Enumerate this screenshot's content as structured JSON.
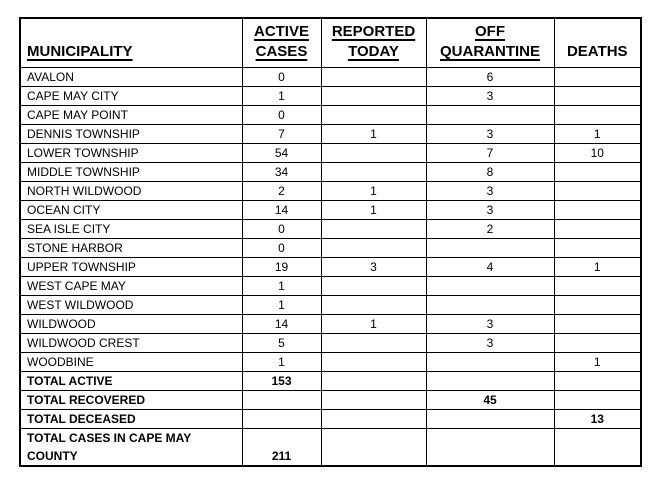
{
  "page": {
    "background_color": "#ffffff",
    "text_color": "#000000",
    "border_color": "#000000"
  },
  "table": {
    "columns": [
      {
        "id": "municipality",
        "label": "MUNICIPALITY",
        "underline": true,
        "align": "left"
      },
      {
        "id": "active_cases",
        "label": "ACTIVE\nCASES",
        "underline": true,
        "align": "center"
      },
      {
        "id": "reported_today",
        "label": "REPORTED\nTODAY",
        "underline": true,
        "align": "center"
      },
      {
        "id": "off_quarantine",
        "label": "OFF\nQUARANTINE",
        "underline": true,
        "align": "center"
      },
      {
        "id": "deaths",
        "label": "DEATHS",
        "underline": false,
        "align": "center"
      }
    ],
    "rows": [
      {
        "municipality": "AVALON",
        "active_cases": "0",
        "reported_today": "",
        "off_quarantine": "6",
        "deaths": ""
      },
      {
        "municipality": "CAPE MAY CITY",
        "active_cases": "1",
        "reported_today": "",
        "off_quarantine": "3",
        "deaths": ""
      },
      {
        "municipality": "CAPE MAY POINT",
        "active_cases": "0",
        "reported_today": "",
        "off_quarantine": "",
        "deaths": ""
      },
      {
        "municipality": "DENNIS TOWNSHIP",
        "active_cases": "7",
        "reported_today": "1",
        "off_quarantine": "3",
        "deaths": "1"
      },
      {
        "municipality": "LOWER TOWNSHIP",
        "active_cases": "54",
        "reported_today": "",
        "off_quarantine": "7",
        "deaths": "10"
      },
      {
        "municipality": "MIDDLE TOWNSHIP",
        "active_cases": "34",
        "reported_today": "",
        "off_quarantine": "8",
        "deaths": ""
      },
      {
        "municipality": "NORTH WILDWOOD",
        "active_cases": "2",
        "reported_today": "1",
        "off_quarantine": "3",
        "deaths": ""
      },
      {
        "municipality": "OCEAN CITY",
        "active_cases": "14",
        "reported_today": "1",
        "off_quarantine": "3",
        "deaths": ""
      },
      {
        "municipality": "SEA ISLE CITY",
        "active_cases": "0",
        "reported_today": "",
        "off_quarantine": "2",
        "deaths": ""
      },
      {
        "municipality": "STONE HARBOR",
        "active_cases": "0",
        "reported_today": "",
        "off_quarantine": "",
        "deaths": ""
      },
      {
        "municipality": "UPPER TOWNSHIP",
        "active_cases": "19",
        "reported_today": "3",
        "off_quarantine": "4",
        "deaths": "1"
      },
      {
        "municipality": "WEST CAPE MAY",
        "active_cases": "1",
        "reported_today": "",
        "off_quarantine": "",
        "deaths": ""
      },
      {
        "municipality": "WEST WILDWOOD",
        "active_cases": "1",
        "reported_today": "",
        "off_quarantine": "",
        "deaths": ""
      },
      {
        "municipality": "WILDWOOD",
        "active_cases": "14",
        "reported_today": "1",
        "off_quarantine": "3",
        "deaths": ""
      },
      {
        "municipality": "WILDWOOD CREST",
        "active_cases": "5",
        "reported_today": "",
        "off_quarantine": "3",
        "deaths": ""
      },
      {
        "municipality": "WOODBINE",
        "active_cases": "1",
        "reported_today": "",
        "off_quarantine": "",
        "deaths": "1"
      },
      {
        "municipality": "TOTAL ACTIVE",
        "active_cases": "153",
        "reported_today": "",
        "off_quarantine": "",
        "deaths": "",
        "bold": true
      },
      {
        "municipality": "TOTAL RECOVERED",
        "active_cases": "",
        "reported_today": "",
        "off_quarantine": "45",
        "deaths": "",
        "bold": true
      },
      {
        "municipality": "TOTAL DECEASED",
        "active_cases": "",
        "reported_today": "",
        "off_quarantine": "",
        "deaths": "13",
        "bold": true
      },
      {
        "municipality": "TOTAL CASES IN CAPE MAY\nCOUNTY",
        "active_cases": "211",
        "reported_today": "",
        "off_quarantine": "",
        "deaths": "",
        "bold": true,
        "tall": true
      }
    ]
  }
}
